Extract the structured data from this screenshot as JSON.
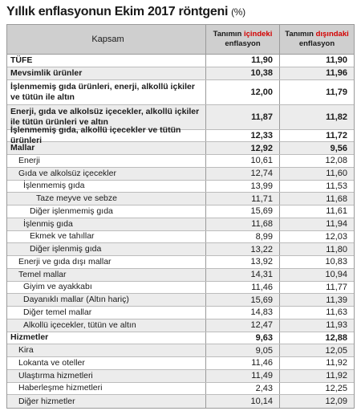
{
  "title": "Yıllık enflasyonun Ekim 2017 röntgeni",
  "unit": "(%)",
  "header": {
    "col1": "Kapsam",
    "col2_pre": "Tanımın ",
    "col2_hl": "içindeki",
    "col2_sub": "enflasyon",
    "col3_pre": "Tanımın ",
    "col3_hl": "dışındaki",
    "col3_sub": "enflasyon"
  },
  "rows": [
    {
      "label": "TÜFE",
      "inside": "11,90",
      "outside": "11,90",
      "bold": true,
      "level": 0
    },
    {
      "label": "Mevsimlik ürünler",
      "inside": "10,38",
      "outside": "11,96",
      "bold": true,
      "level": 0
    },
    {
      "label": "İşlenmemiş gıda ürünleri, enerji, alkollü içkiler ve tütün ile altın",
      "inside": "12,00",
      "outside": "11,79",
      "bold": true,
      "level": 0,
      "tall": true
    },
    {
      "label": "Enerji, gıda ve alkolsüz içecekler, alkollü içkiler ile tütün ürünleri ve altın",
      "inside": "11,87",
      "outside": "11,82",
      "bold": true,
      "level": 0,
      "tall": true
    },
    {
      "label": "İşlenmemiş gıda, alkollü içecekler ve tütün ürünleri",
      "inside": "12,33",
      "outside": "11,72",
      "bold": true,
      "level": 0
    },
    {
      "label": "Mallar",
      "inside": "12,92",
      "outside": "9,56",
      "bold": true,
      "level": 0
    },
    {
      "label": "Enerji",
      "inside": "10,61",
      "outside": "12,08",
      "bold": false,
      "level": 1
    },
    {
      "label": "Gıda ve alkolsüz içecekler",
      "inside": "12,74",
      "outside": "11,60",
      "bold": false,
      "level": 1
    },
    {
      "label": "İşlenmemiş gıda",
      "inside": "13,99",
      "outside": "11,53",
      "bold": false,
      "level": 2
    },
    {
      "label": "Taze meyve ve sebze",
      "inside": "11,71",
      "outside": "11,68",
      "bold": false,
      "level": 4
    },
    {
      "label": "Diğer işlenmemiş gıda",
      "inside": "15,69",
      "outside": "11,61",
      "bold": false,
      "level": 3
    },
    {
      "label": "İşlenmiş gıda",
      "inside": "11,68",
      "outside": "11,94",
      "bold": false,
      "level": 2
    },
    {
      "label": "Ekmek ve tahıllar",
      "inside": "8,99",
      "outside": "12,03",
      "bold": false,
      "level": 3
    },
    {
      "label": "Diğer işlenmiş gıda",
      "inside": "13,22",
      "outside": "11,80",
      "bold": false,
      "level": 3
    },
    {
      "label": "Enerji ve gıda dışı mallar",
      "inside": "13,92",
      "outside": "10,83",
      "bold": false,
      "level": 1
    },
    {
      "label": "Temel mallar",
      "inside": "14,31",
      "outside": "10,94",
      "bold": false,
      "level": 1
    },
    {
      "label": "Giyim ve ayakkabı",
      "inside": "11,46",
      "outside": "11,77",
      "bold": false,
      "level": 2
    },
    {
      "label": "Dayanıklı mallar (Altın hariç)",
      "inside": "15,69",
      "outside": "11,39",
      "bold": false,
      "level": 2
    },
    {
      "label": "Diğer temel mallar",
      "inside": "14,83",
      "outside": "11,63",
      "bold": false,
      "level": 2
    },
    {
      "label": "Alkollü içecekler, tütün ve altın",
      "inside": "12,47",
      "outside": "11,93",
      "bold": false,
      "level": 2
    },
    {
      "label": "Hizmetler",
      "inside": "9,63",
      "outside": "12,88",
      "bold": true,
      "level": 0
    },
    {
      "label": "Kira",
      "inside": "9,05",
      "outside": "12,05",
      "bold": false,
      "level": 1
    },
    {
      "label": "Lokanta ve oteller",
      "inside": "11,46",
      "outside": "11,92",
      "bold": false,
      "level": 1
    },
    {
      "label": "Ulaştırma hizmetleri",
      "inside": "11,49",
      "outside": "11,92",
      "bold": false,
      "level": 1
    },
    {
      "label": "Haberleşme hizmetleri",
      "inside": "2,43",
      "outside": "12,25",
      "bold": false,
      "level": 1
    },
    {
      "label": "Diğer hizmetler",
      "inside": "10,14",
      "outside": "12,09",
      "bold": false,
      "level": 1
    }
  ],
  "colors": {
    "highlight": "#d40000",
    "header_bg": "#cfcfcf",
    "stripe": "#ececec"
  }
}
